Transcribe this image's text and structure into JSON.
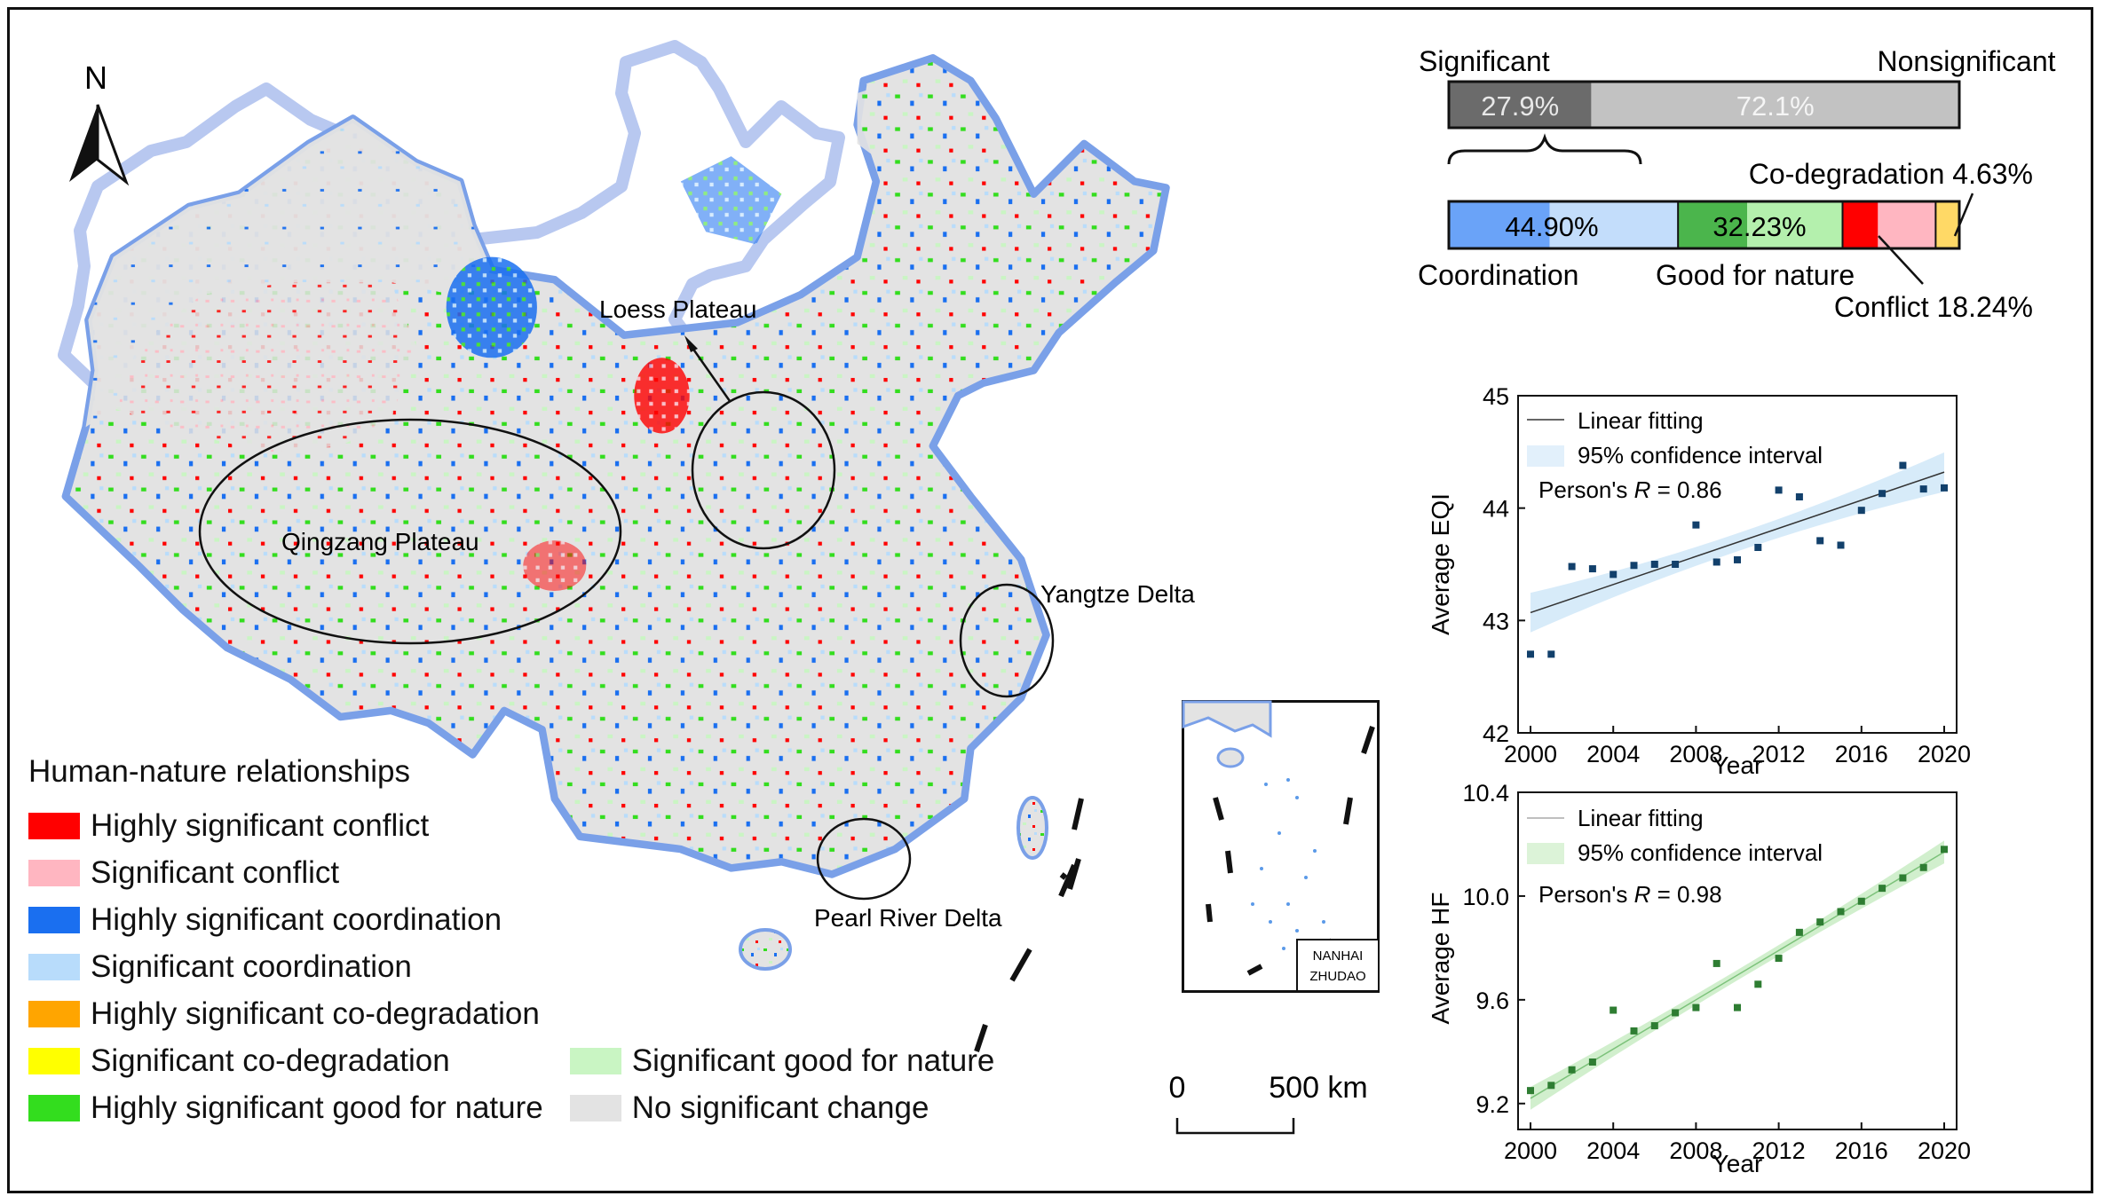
{
  "map": {
    "north_label": "N",
    "region_labels": {
      "loess": "Loess Plateau",
      "qingzang": "Qingzang Plateau",
      "yangtze": "Yangtze Delta",
      "pearl": "Pearl River Delta"
    },
    "inset_label_line1": "NANHAI",
    "inset_label_line2": "ZHUDAO",
    "scale_zero": "0",
    "scale_distance": "500 km"
  },
  "legend": {
    "title": "Human-nature relationships",
    "items": [
      {
        "label": "Highly significant conflict",
        "color": "#ff0000"
      },
      {
        "label": "Significant conflict",
        "color": "#ffb6c1"
      },
      {
        "label": "Highly significant coordination",
        "color": "#1a6ff0"
      },
      {
        "label": "Significant coordination",
        "color": "#b8dcfb"
      },
      {
        "label": "Highly significant co-degradation",
        "color": "#ffa500"
      },
      {
        "label": "Significant co-degradation",
        "color": "#ffff00"
      },
      {
        "label": "Highly significant good for nature",
        "color": "#33dd1e"
      },
      {
        "label": "Significant good for nature",
        "color": "#c9f5c3"
      },
      {
        "label": "No significant change",
        "color": "#e3e3e3"
      }
    ]
  },
  "share_bars": {
    "significant_label": "Significant",
    "nonsignificant_label": "Nonsignificant",
    "significant_value": "27.9%",
    "nonsignificant_value": "72.1%",
    "significant_share": 27.9,
    "coordination_label": "Coordination",
    "coordination_value": "44.90%",
    "coordination_share": 44.9,
    "good_label": "Good for nature",
    "good_value": "32.23%",
    "good_share": 32.23,
    "conflict_label": "Conflict 18.24%",
    "conflict_share": 18.24,
    "codeg_label": "Co-degradation 4.63%",
    "codeg_share": 4.63
  },
  "chart_data": [
    {
      "type": "scatter",
      "xlabel": "Year",
      "ylabel": "Average EQI",
      "xlim": [
        2000,
        2020
      ],
      "ylim": [
        42,
        45
      ],
      "x_ticks": [
        "2000",
        "2004",
        "2008",
        "2012",
        "2016",
        "2020"
      ],
      "y_ticks": [
        "42",
        "43",
        "44",
        "45"
      ],
      "legend": [
        "Linear fitting",
        "95% confidence interval"
      ],
      "stat_label": "Person's ",
      "stat_symbol": "R",
      "stat_value": " = 0.86",
      "fit": {
        "start": 43.07,
        "end": 44.32
      },
      "series": [
        {
          "x": [
            2000,
            2001,
            2002,
            2003,
            2004,
            2005,
            2006,
            2007,
            2008,
            2009,
            2010,
            2011,
            2012,
            2013,
            2014,
            2015,
            2016,
            2017,
            2018,
            2019,
            2020
          ],
          "y": [
            42.7,
            42.7,
            43.48,
            43.46,
            43.41,
            43.49,
            43.5,
            43.5,
            43.85,
            43.52,
            43.54,
            43.65,
            44.16,
            44.1,
            43.71,
            43.67,
            43.98,
            44.13,
            44.38,
            44.17,
            44.18
          ]
        }
      ]
    },
    {
      "type": "scatter",
      "xlabel": "Year",
      "ylabel": "Average HF",
      "xlim": [
        2000,
        2020
      ],
      "ylim": [
        9.1,
        10.4
      ],
      "x_ticks": [
        "2000",
        "2004",
        "2008",
        "2012",
        "2016",
        "2020"
      ],
      "y_ticks": [
        "9.2",
        "9.6",
        "10.0",
        "10.4"
      ],
      "legend": [
        "Linear fitting",
        "95% confidence interval"
      ],
      "stat_label": "Person's ",
      "stat_symbol": "R",
      "stat_value": " = 0.98",
      "fit": {
        "start": 9.22,
        "end": 10.17
      },
      "series": [
        {
          "x": [
            2000,
            2001,
            2002,
            2003,
            2004,
            2005,
            2006,
            2007,
            2008,
            2009,
            2010,
            2011,
            2012,
            2013,
            2014,
            2015,
            2016,
            2017,
            2018,
            2019,
            2020
          ],
          "y": [
            9.25,
            9.27,
            9.33,
            9.36,
            9.56,
            9.48,
            9.5,
            9.55,
            9.57,
            9.74,
            9.57,
            9.66,
            9.76,
            9.86,
            9.9,
            9.94,
            9.98,
            10.03,
            10.07,
            10.11,
            10.18
          ]
        }
      ]
    }
  ]
}
